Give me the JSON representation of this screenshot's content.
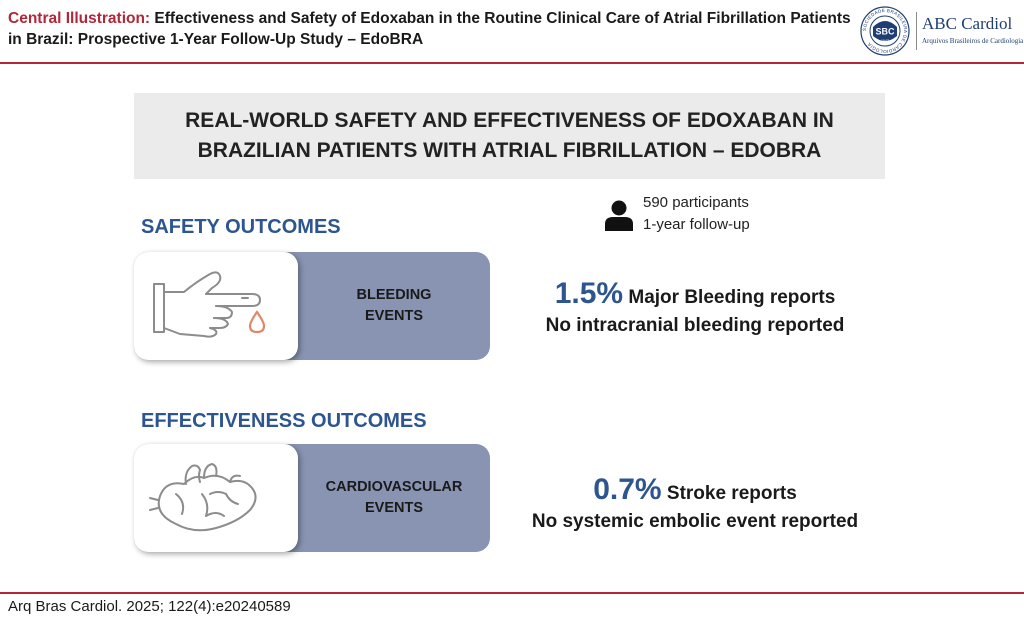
{
  "header": {
    "lead": "Central Illustration:",
    "title": "Effectiveness and Safety of Edoxaban in the Routine Clinical Care of Atrial Fibrillation Patients in Brazil: Prospective 1-Year Follow-Up Study – EdoBRA"
  },
  "logo": {
    "seal_abbr": "SBC",
    "seal_ring": "SOCIEDADE BRASILEIRA DE CARDIOLOGIA",
    "seal_year": "1943",
    "name": "ABC Cardiol",
    "subtitle": "Arquivos Brasileiros de Cardiologia"
  },
  "banner": {
    "line1": "REAL-WORLD SAFETY AND EFFECTIVENESS OF EDOXABAN IN",
    "line2": "BRAZILIAN PATIENTS WITH ATRIAL FIBRILLATION – EDOBRA"
  },
  "participants": {
    "count": "590 participants",
    "followup": "1-year follow-up",
    "icon": "person-icon"
  },
  "safety": {
    "title": "SAFETY OUTCOMES",
    "icon": "bleeding-finger-icon",
    "label_line1": "BLEEDING",
    "label_line2": "EVENTS",
    "percent": "1.5%",
    "result": "Major Bleeding reports",
    "note": "No intracranial bleeding reported"
  },
  "effectiveness": {
    "title": "EFFECTIVENESS OUTCOMES",
    "icon": "heart-icon",
    "label_line1": "CARDIOVASCULAR",
    "label_line2": "EVENTS",
    "percent": "0.7%",
    "result": "Stroke reports",
    "note": "No systemic embolic event reported"
  },
  "footer": {
    "citation": "Arq Bras Cardiol. 2025; 122(4):e20240589"
  },
  "colors": {
    "accent_red": "#b0283a",
    "accent_blue": "#2d5590",
    "bar_fill": "#8894b2",
    "banner_fill": "#ebebeb",
    "drop": "#e0876a"
  }
}
